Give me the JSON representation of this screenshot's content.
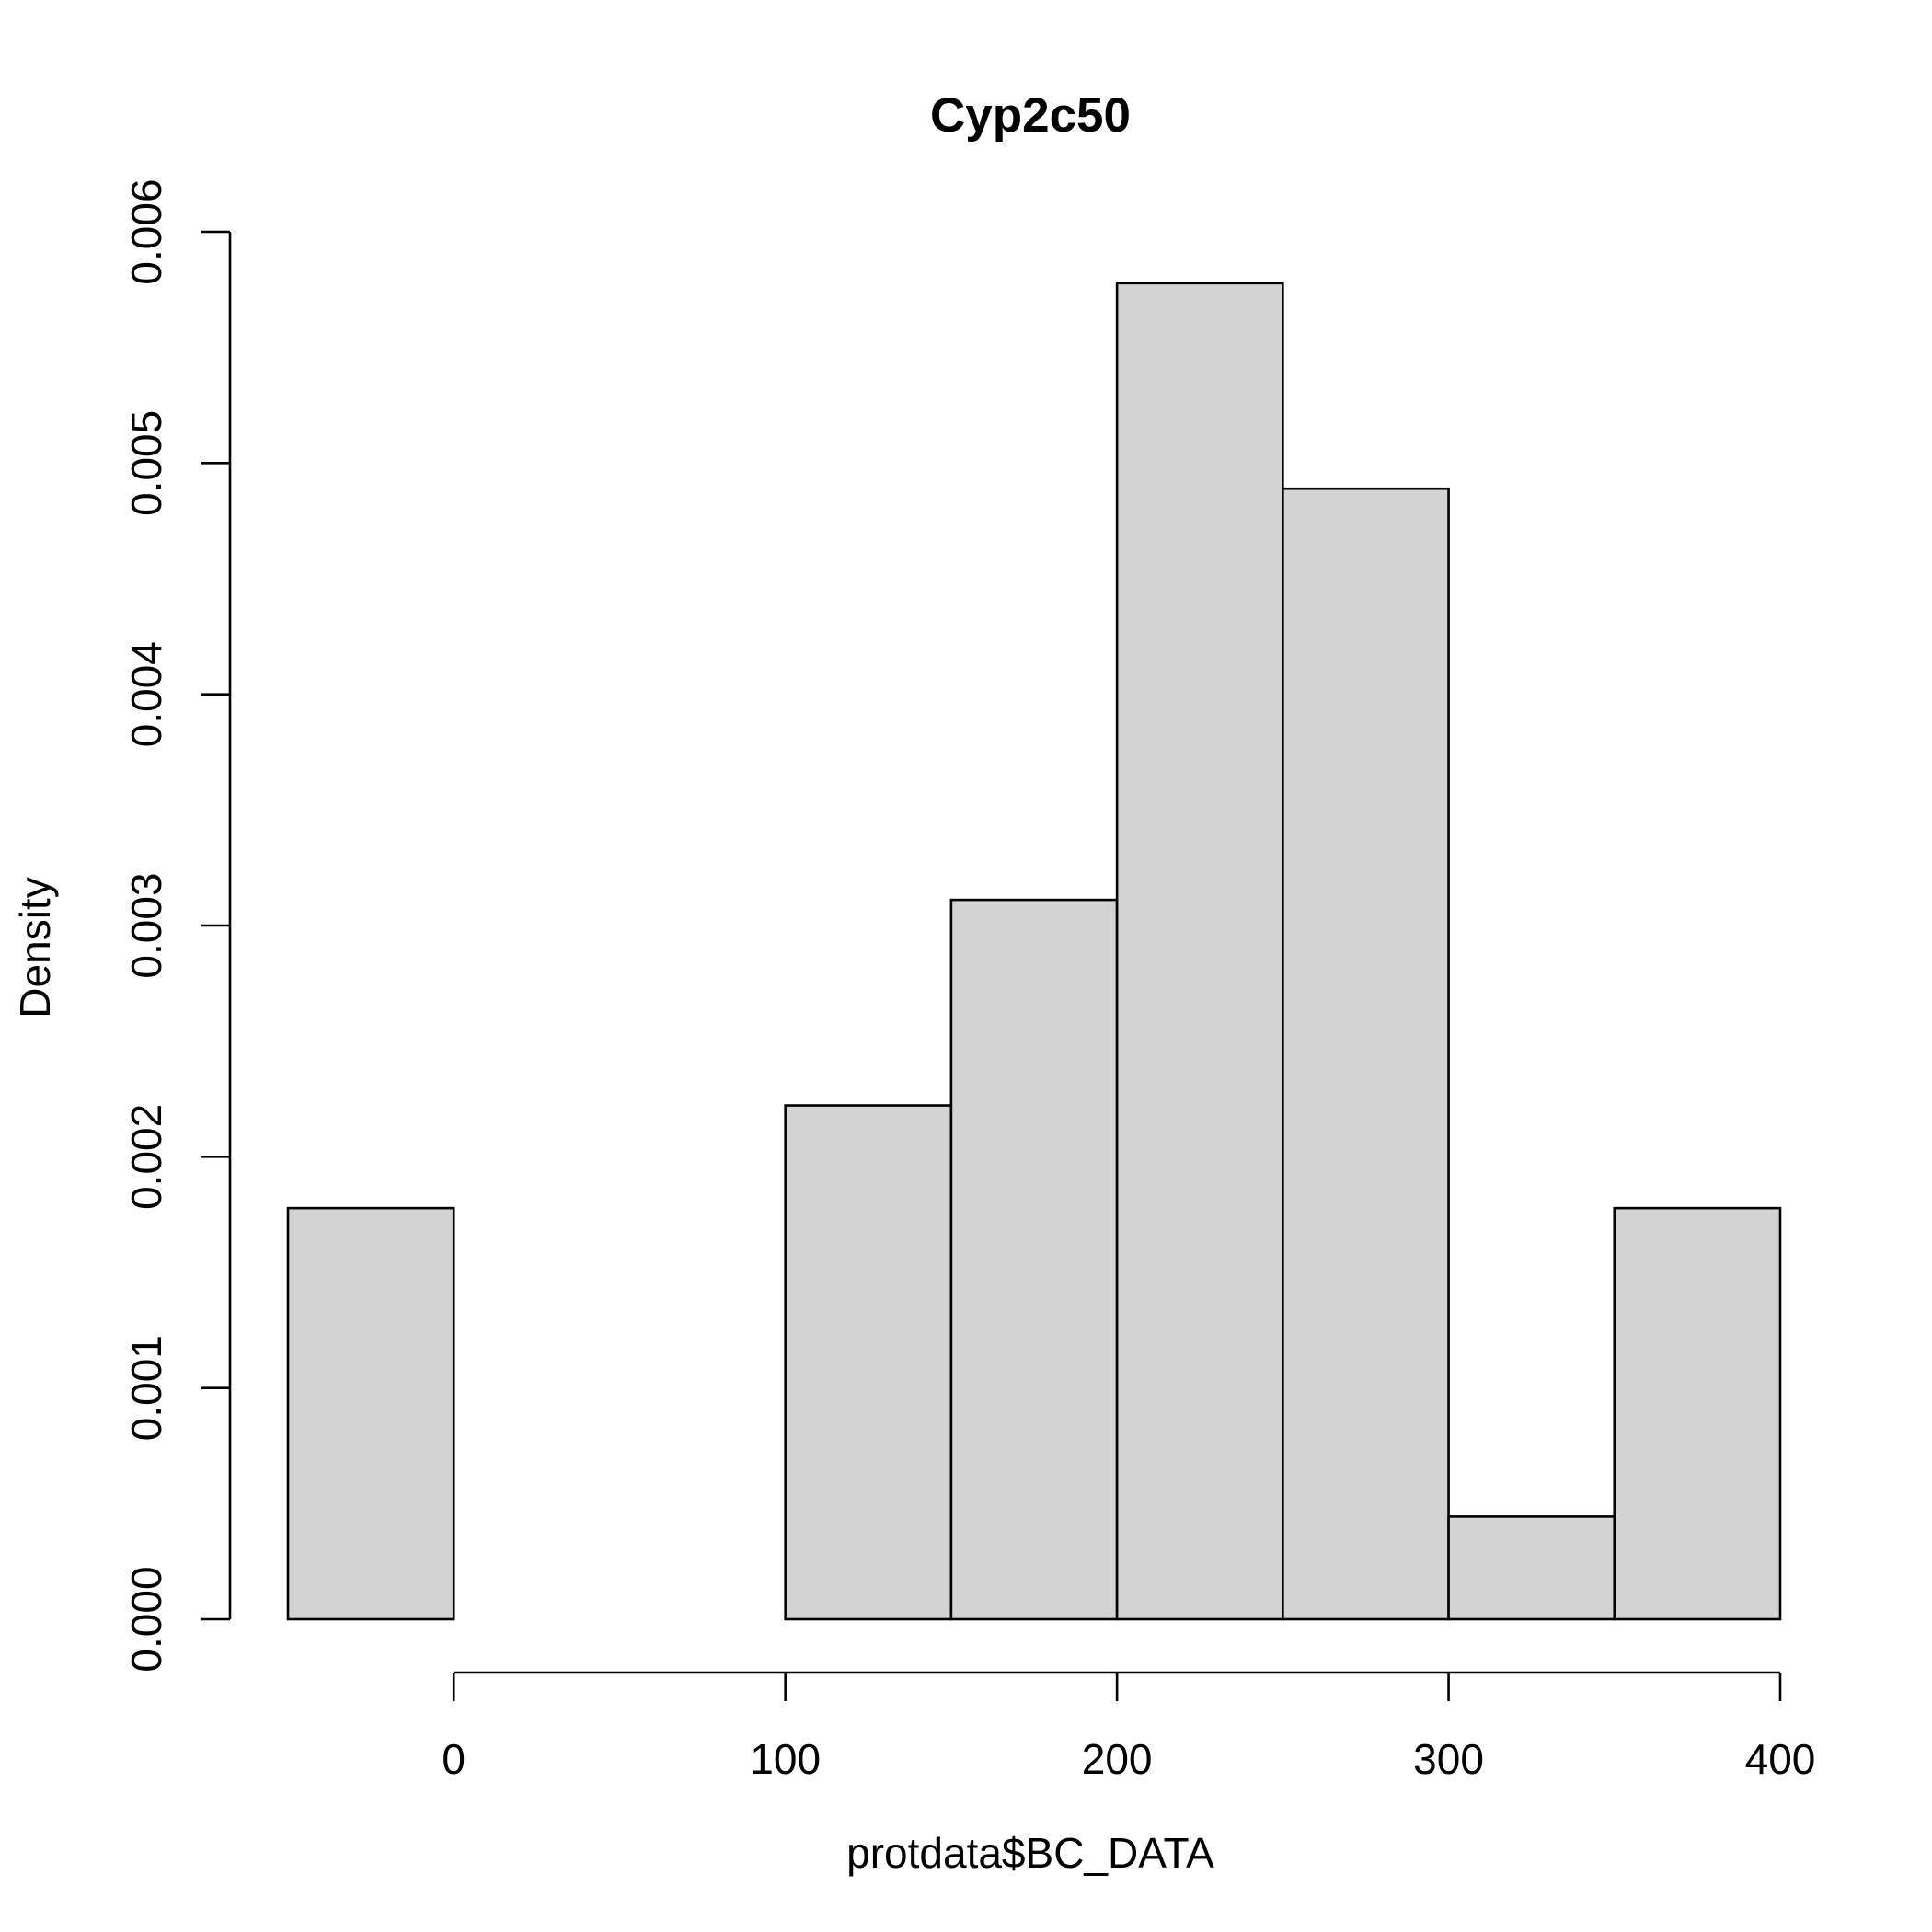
{
  "chart_data": {
    "type": "bar",
    "subtype": "histogram",
    "title": "Cyp2c50",
    "xlabel": "protdata$BC_DATA",
    "ylabel": "Density",
    "bins": [
      {
        "start": -50,
        "end": 0,
        "density": 0.001778
      },
      {
        "start": 0,
        "end": 50,
        "density": 0.0
      },
      {
        "start": 50,
        "end": 100,
        "density": 0.0
      },
      {
        "start": 100,
        "end": 150,
        "density": 0.002222
      },
      {
        "start": 150,
        "end": 200,
        "density": 0.003111
      },
      {
        "start": 200,
        "end": 250,
        "density": 0.005778
      },
      {
        "start": 250,
        "end": 300,
        "density": 0.004889
      },
      {
        "start": 300,
        "end": 350,
        "density": 0.000444
      },
      {
        "start": 350,
        "end": 400,
        "density": 0.001778
      }
    ],
    "xlim": [
      -50,
      400
    ],
    "ylim": [
      0,
      0.006
    ],
    "x_ticks": [
      0,
      100,
      200,
      300,
      400
    ],
    "x_tick_labels": [
      "0",
      "100",
      "200",
      "300",
      "400"
    ],
    "y_ticks": [
      0,
      0.001,
      0.002,
      0.003,
      0.004,
      0.005,
      0.006
    ],
    "y_tick_labels": [
      "0.000",
      "0.001",
      "0.002",
      "0.003",
      "0.004",
      "0.005",
      "0.006"
    ],
    "bar_fill": "#d3d3d3",
    "grid": false,
    "legend": "none"
  }
}
